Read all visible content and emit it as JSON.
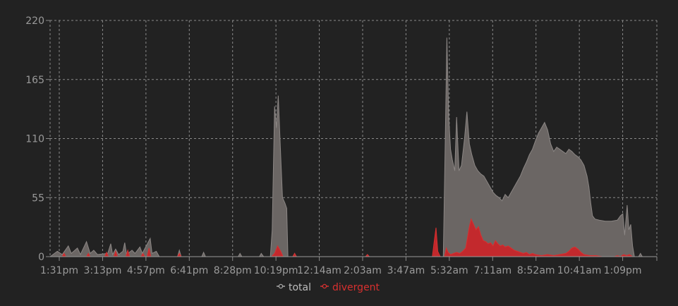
{
  "chart_data": {
    "type": "area",
    "ylim": [
      0,
      220
    ],
    "y_ticks": [
      "0",
      "55",
      "110",
      "165",
      "220"
    ],
    "x_tick_labels": [
      "1:31pm",
      "3:13pm",
      "4:57pm",
      "6:41pm",
      "8:28pm",
      "10:19pm",
      "12:14am",
      "2:03am",
      "3:47am",
      "5:32am",
      "7:11am",
      "8:52am",
      "10:41am",
      "1:09pm"
    ],
    "grid": true,
    "legend_position": "bottom",
    "series": [
      {
        "name": "total",
        "color": "#6b6664",
        "line_color": "#8c8785",
        "points": [
          [
            0,
            0
          ],
          [
            1.2,
            5
          ],
          [
            2,
            2
          ],
          [
            3,
            10
          ],
          [
            3.5,
            3
          ],
          [
            4.5,
            8
          ],
          [
            5,
            2
          ],
          [
            6,
            14
          ],
          [
            6.6,
            3
          ],
          [
            7.2,
            6
          ],
          [
            7.8,
            2
          ],
          [
            9.5,
            3
          ],
          [
            10,
            12
          ],
          [
            10.3,
            2
          ],
          [
            10.8,
            7
          ],
          [
            11.3,
            2
          ],
          [
            12,
            5
          ],
          [
            12.3,
            13
          ],
          [
            12.6,
            2
          ],
          [
            13.5,
            6
          ],
          [
            14,
            3
          ],
          [
            14.8,
            9
          ],
          [
            15.2,
            3
          ],
          [
            16.5,
            17
          ],
          [
            16.8,
            3
          ],
          [
            17.5,
            5
          ],
          [
            18,
            0
          ],
          [
            21,
            0
          ],
          [
            21.3,
            6
          ],
          [
            21.6,
            0
          ],
          [
            25,
            0
          ],
          [
            25.3,
            4
          ],
          [
            25.6,
            0
          ],
          [
            31,
            0
          ],
          [
            31.3,
            3
          ],
          [
            31.6,
            0
          ],
          [
            34.5,
            0
          ],
          [
            34.8,
            3
          ],
          [
            35.2,
            0
          ],
          [
            36.3,
            0
          ],
          [
            36.6,
            25
          ],
          [
            37,
            140
          ],
          [
            37.3,
            120
          ],
          [
            37.6,
            150
          ],
          [
            38,
            95
          ],
          [
            38.3,
            55
          ],
          [
            38.7,
            50
          ],
          [
            39,
            45
          ],
          [
            39.2,
            0
          ],
          [
            40,
            0
          ],
          [
            40.3,
            3
          ],
          [
            40.6,
            0
          ],
          [
            52,
            0
          ],
          [
            52.3,
            2
          ],
          [
            52.6,
            0
          ],
          [
            63.3,
            0
          ],
          [
            63.6,
            15
          ],
          [
            63.9,
            0
          ],
          [
            64.8,
            0
          ],
          [
            65.1,
            100
          ],
          [
            65.4,
            204
          ],
          [
            65.7,
            130
          ],
          [
            66,
            100
          ],
          [
            66.3,
            90
          ],
          [
            66.7,
            80
          ],
          [
            67,
            130
          ],
          [
            67.4,
            80
          ],
          [
            67.8,
            85
          ],
          [
            68.3,
            110
          ],
          [
            68.7,
            135
          ],
          [
            69.1,
            105
          ],
          [
            69.5,
            95
          ],
          [
            70,
            85
          ],
          [
            70.5,
            80
          ],
          [
            71,
            77
          ],
          [
            71.5,
            75
          ],
          [
            72,
            70
          ],
          [
            72.5,
            65
          ],
          [
            73,
            60
          ],
          [
            73.5,
            57
          ],
          [
            74,
            55
          ],
          [
            74.5,
            52
          ],
          [
            75,
            58
          ],
          [
            75.5,
            55
          ],
          [
            76,
            60
          ],
          [
            76.5,
            65
          ],
          [
            77,
            70
          ],
          [
            77.5,
            75
          ],
          [
            78,
            82
          ],
          [
            78.5,
            88
          ],
          [
            79,
            95
          ],
          [
            79.5,
            100
          ],
          [
            80,
            108
          ],
          [
            80.5,
            115
          ],
          [
            81,
            120
          ],
          [
            81.5,
            125
          ],
          [
            82,
            118
          ],
          [
            82.5,
            105
          ],
          [
            83,
            98
          ],
          [
            83.5,
            102
          ],
          [
            84,
            100
          ],
          [
            84.5,
            98
          ],
          [
            85,
            96
          ],
          [
            85.5,
            100
          ],
          [
            86,
            98
          ],
          [
            86.5,
            95
          ],
          [
            87,
            93
          ],
          [
            87.5,
            90
          ],
          [
            88,
            85
          ],
          [
            88.5,
            75
          ],
          [
            88.8,
            65
          ],
          [
            89.1,
            50
          ],
          [
            89.4,
            38
          ],
          [
            89.8,
            35
          ],
          [
            90.5,
            34
          ],
          [
            91.5,
            33
          ],
          [
            92.5,
            33
          ],
          [
            93.5,
            34
          ],
          [
            94,
            38
          ],
          [
            94.4,
            40
          ],
          [
            94.7,
            20
          ],
          [
            95.1,
            48
          ],
          [
            95.4,
            25
          ],
          [
            95.7,
            30
          ],
          [
            96,
            10
          ],
          [
            96.3,
            0
          ],
          [
            97,
            0
          ],
          [
            97.3,
            3
          ],
          [
            97.6,
            0
          ],
          [
            100,
            0
          ]
        ]
      },
      {
        "name": "divergent",
        "color": "#c8262a",
        "line_color": "#d83030",
        "points": [
          [
            0,
            0
          ],
          [
            2,
            0
          ],
          [
            2.3,
            3
          ],
          [
            2.6,
            0
          ],
          [
            6,
            0
          ],
          [
            6.3,
            3
          ],
          [
            6.6,
            0
          ],
          [
            9,
            0
          ],
          [
            9.3,
            4
          ],
          [
            9.6,
            0
          ],
          [
            10.5,
            0
          ],
          [
            10.8,
            5
          ],
          [
            11.1,
            0
          ],
          [
            12.5,
            0
          ],
          [
            12.8,
            6
          ],
          [
            13.1,
            0
          ],
          [
            15,
            0
          ],
          [
            15.3,
            3
          ],
          [
            15.6,
            0
          ],
          [
            16,
            0
          ],
          [
            16.3,
            8
          ],
          [
            16.6,
            0
          ],
          [
            21,
            0
          ],
          [
            21.3,
            3
          ],
          [
            21.6,
            0
          ],
          [
            36.5,
            0
          ],
          [
            37,
            3
          ],
          [
            37.5,
            10
          ],
          [
            38,
            5
          ],
          [
            38.4,
            0
          ],
          [
            40,
            0
          ],
          [
            40.3,
            3
          ],
          [
            40.6,
            0
          ],
          [
            52,
            0
          ],
          [
            52.3,
            2
          ],
          [
            52.6,
            0
          ],
          [
            63,
            0
          ],
          [
            63.3,
            14
          ],
          [
            63.6,
            27
          ],
          [
            63.9,
            5
          ],
          [
            64.3,
            0
          ],
          [
            65,
            0
          ],
          [
            65.3,
            8
          ],
          [
            65.6,
            4
          ],
          [
            66,
            2
          ],
          [
            66.5,
            3
          ],
          [
            67,
            4
          ],
          [
            67.5,
            3
          ],
          [
            68,
            5
          ],
          [
            68.5,
            8
          ],
          [
            68.8,
            18
          ],
          [
            69.1,
            28
          ],
          [
            69.4,
            35
          ],
          [
            69.8,
            30
          ],
          [
            70.2,
            25
          ],
          [
            70.6,
            28
          ],
          [
            71,
            20
          ],
          [
            71.4,
            15
          ],
          [
            71.8,
            14
          ],
          [
            72.2,
            12
          ],
          [
            72.6,
            13
          ],
          [
            73,
            10
          ],
          [
            73.4,
            15
          ],
          [
            73.8,
            12
          ],
          [
            74.2,
            10
          ],
          [
            74.6,
            11
          ],
          [
            75,
            9
          ],
          [
            75.5,
            10
          ],
          [
            76,
            8
          ],
          [
            76.5,
            6
          ],
          [
            77,
            5
          ],
          [
            77.5,
            4
          ],
          [
            78,
            3
          ],
          [
            78.5,
            4
          ],
          [
            79,
            2
          ],
          [
            79.5,
            3
          ],
          [
            80,
            2
          ],
          [
            81,
            1
          ],
          [
            82,
            2
          ],
          [
            83,
            1
          ],
          [
            84,
            2
          ],
          [
            85,
            3
          ],
          [
            85.5,
            5
          ],
          [
            86,
            8
          ],
          [
            86.5,
            9
          ],
          [
            87,
            7
          ],
          [
            87.5,
            4
          ],
          [
            88,
            2
          ],
          [
            89,
            1
          ],
          [
            90,
            1
          ],
          [
            91,
            0
          ],
          [
            93,
            0
          ],
          [
            93.5,
            1
          ],
          [
            94,
            0
          ],
          [
            94.5,
            2
          ],
          [
            95,
            1
          ],
          [
            95.5,
            2
          ],
          [
            96,
            0
          ],
          [
            100,
            0
          ]
        ]
      }
    ]
  }
}
